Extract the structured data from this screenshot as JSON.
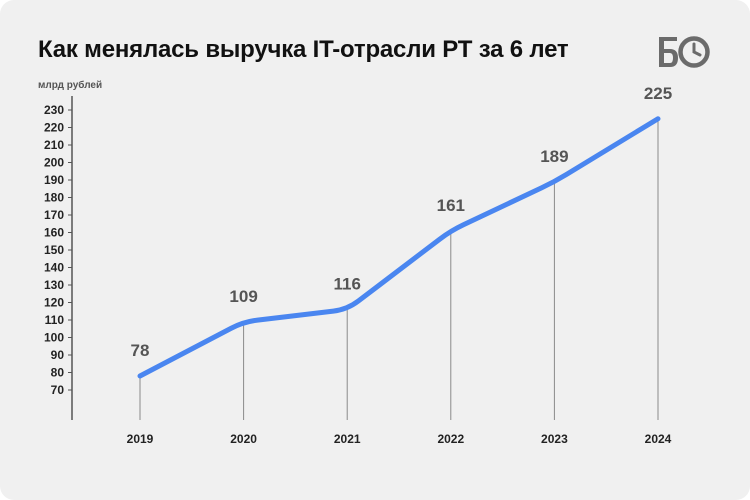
{
  "header": {
    "title": "Как менялась выручка IT-отрасли РТ за 6 лет",
    "logo_text": "БО"
  },
  "chart_data": {
    "type": "line",
    "title": "Как менялась выручка IT-отрасли РТ за 6 лет",
    "ylabel": "млрд рублей",
    "xlabel": "",
    "categories": [
      "2019",
      "2020",
      "2021",
      "2022",
      "2023",
      "2024"
    ],
    "series": [
      {
        "values": [
          78,
          109,
          116,
          161,
          189,
          225
        ]
      }
    ],
    "data_labels": [
      "78",
      "109",
      "116",
      "161",
      "189",
      "225"
    ],
    "yticks": [
      70,
      80,
      90,
      100,
      110,
      120,
      130,
      140,
      150,
      160,
      170,
      180,
      190,
      200,
      210,
      220,
      230
    ],
    "ylim": [
      65,
      235
    ],
    "grid": false,
    "line_color": "#4a86f0"
  }
}
